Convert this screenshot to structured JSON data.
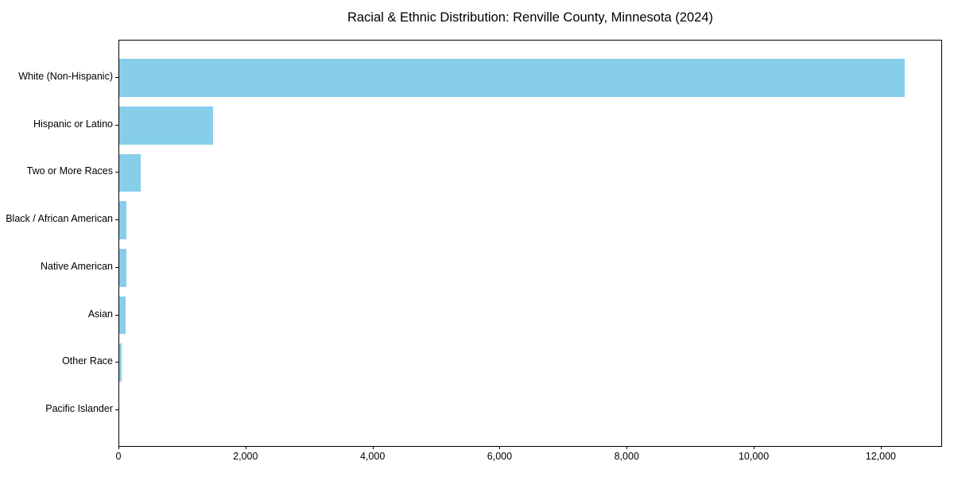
{
  "chart_data": {
    "type": "bar",
    "orientation": "horizontal",
    "title": "Racial & Ethnic Distribution: Renville County, Minnesota (2024)",
    "xlabel": "",
    "ylabel": "",
    "categories": [
      "White (Non-Hispanic)",
      "Hispanic or Latino",
      "Two or More Races",
      "Black / African American",
      "Native American",
      "Asian",
      "Other Race",
      "Pacific Islander"
    ],
    "values": [
      12360,
      1475,
      335,
      115,
      110,
      95,
      35,
      0
    ],
    "xlim": [
      0,
      12965
    ],
    "xticks": [
      0,
      2000,
      4000,
      6000,
      8000,
      10000,
      12000
    ],
    "xtick_labels": [
      "0",
      "2,000",
      "4,000",
      "6,000",
      "8,000",
      "10,000",
      "12,000"
    ],
    "bar_color": "#87CEEB",
    "background_color": "#ffffff",
    "text_color": "#000000",
    "grid": false,
    "legend": null
  }
}
